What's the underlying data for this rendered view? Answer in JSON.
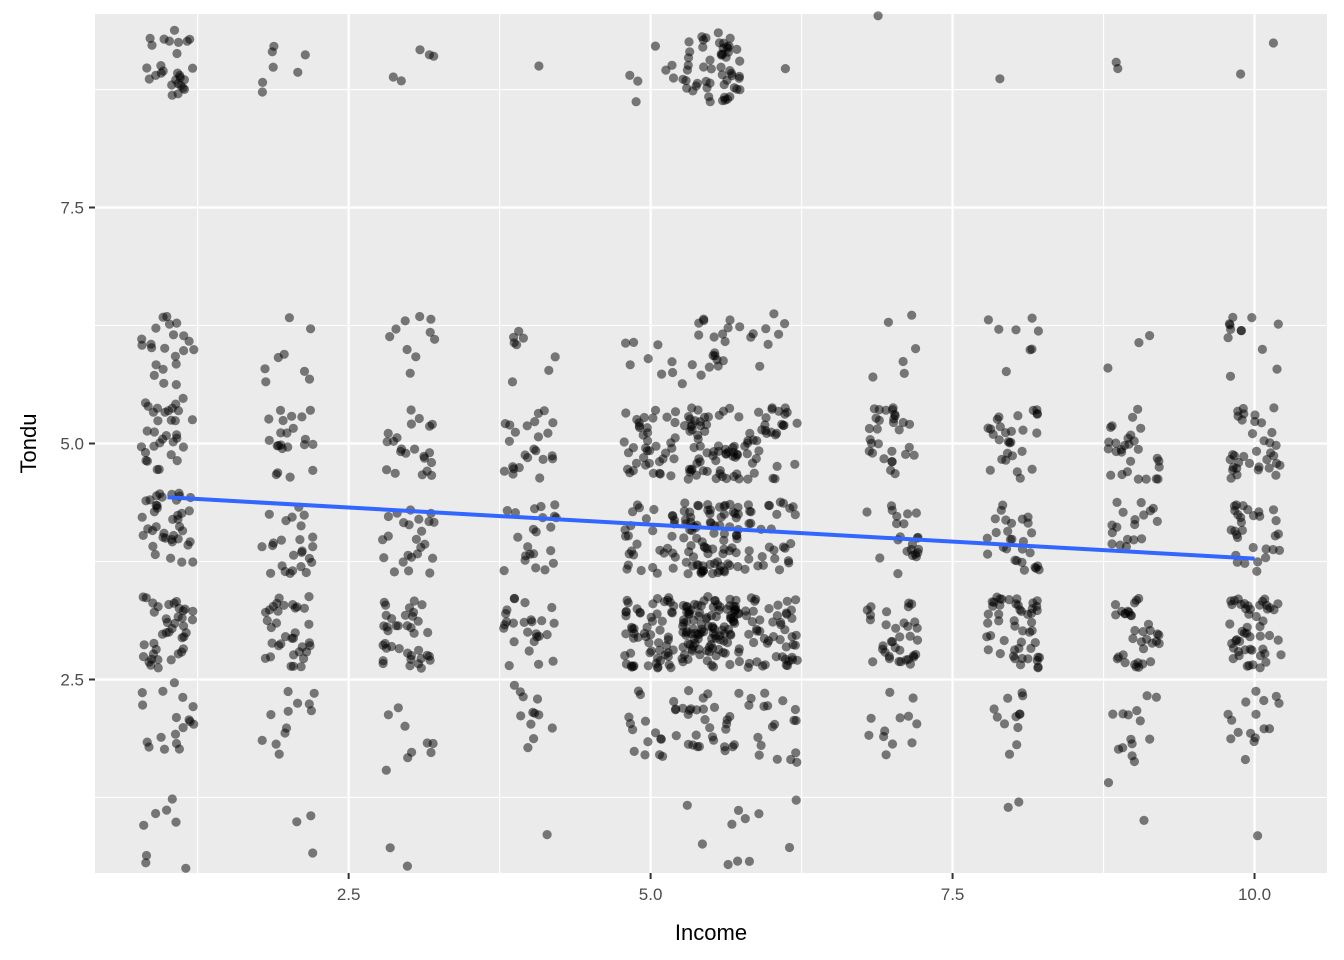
{
  "chart_data": {
    "type": "scatter",
    "title": "",
    "xlabel": "Income",
    "ylabel": "Tondu",
    "xlim": [
      0.4,
      10.6
    ],
    "ylim": [
      0.45,
      9.55
    ],
    "x_ticks": [
      2.5,
      5.0,
      7.5,
      10.0
    ],
    "x_tick_labels": [
      "2.5",
      "5.0",
      "7.5",
      "10.0"
    ],
    "y_ticks": [
      2.5,
      5.0,
      7.5
    ],
    "y_tick_labels": [
      "2.5",
      "5.0",
      "7.5"
    ],
    "x_minor_gridlines": [
      1.25,
      3.75,
      6.25,
      8.75
    ],
    "y_minor_gridlines": [
      1.25,
      3.75,
      6.25,
      8.75
    ],
    "grid": true,
    "jitter": {
      "x": 0.22,
      "y": 0.38
    },
    "points_summary": {
      "description_of_clusters": "x levels 1-10 by y levels 1-9",
      "x_levels": [
        1,
        2,
        3,
        4,
        5,
        5.5,
        6,
        7,
        8,
        9,
        10
      ],
      "y_levels": [
        0.8,
        1.7,
        2.0,
        2.3,
        2.8,
        3.2,
        4.0,
        4.8,
        5.2,
        6.0,
        9.0
      ]
    },
    "clusters": [
      {
        "x": 1,
        "y": 9.0,
        "n": 28
      },
      {
        "x": 1,
        "y": 6.0,
        "n": 22
      },
      {
        "x": 1,
        "y": 5.1,
        "n": 32
      },
      {
        "x": 1,
        "y": 4.1,
        "n": 40
      },
      {
        "x": 1,
        "y": 3.0,
        "n": 40
      },
      {
        "x": 1,
        "y": 2.1,
        "n": 18
      },
      {
        "x": 1,
        "y": 1.2,
        "n": 3
      },
      {
        "x": 1,
        "y": 0.8,
        "n": 5
      },
      {
        "x": 2,
        "y": 9.0,
        "n": 7
      },
      {
        "x": 2,
        "y": 6.0,
        "n": 8
      },
      {
        "x": 2,
        "y": 5.0,
        "n": 22
      },
      {
        "x": 2,
        "y": 4.0,
        "n": 25
      },
      {
        "x": 2,
        "y": 3.0,
        "n": 35
      },
      {
        "x": 2,
        "y": 2.0,
        "n": 12
      },
      {
        "x": 2,
        "y": 1.3,
        "n": 1
      },
      {
        "x": 2,
        "y": 0.85,
        "n": 2
      },
      {
        "x": 3,
        "y": 9.0,
        "n": 5
      },
      {
        "x": 3,
        "y": 6.0,
        "n": 10
      },
      {
        "x": 3,
        "y": 5.0,
        "n": 22
      },
      {
        "x": 3,
        "y": 4.0,
        "n": 24
      },
      {
        "x": 3,
        "y": 3.0,
        "n": 38
      },
      {
        "x": 3,
        "y": 1.9,
        "n": 9
      },
      {
        "x": 3,
        "y": 0.75,
        "n": 2
      },
      {
        "x": 4,
        "y": 8.8,
        "n": 1
      },
      {
        "x": 4,
        "y": 6.0,
        "n": 8
      },
      {
        "x": 4,
        "y": 5.0,
        "n": 24
      },
      {
        "x": 4,
        "y": 4.0,
        "n": 22
      },
      {
        "x": 4,
        "y": 3.0,
        "n": 26
      },
      {
        "x": 4,
        "y": 2.1,
        "n": 12
      },
      {
        "x": 4,
        "y": 0.8,
        "n": 1
      },
      {
        "x": 5,
        "y": 9.0,
        "n": 7
      },
      {
        "x": 5,
        "y": 5.8,
        "n": 8
      },
      {
        "x": 5,
        "y": 5.0,
        "n": 40
      },
      {
        "x": 5,
        "y": 4.0,
        "n": 30
      },
      {
        "x": 5,
        "y": 3.0,
        "n": 60
      },
      {
        "x": 5,
        "y": 2.0,
        "n": 18
      },
      {
        "x": 5.5,
        "y": 9.0,
        "n": 55
      },
      {
        "x": 5.5,
        "y": 6.0,
        "n": 20
      },
      {
        "x": 5.5,
        "y": 5.0,
        "n": 60
      },
      {
        "x": 5.5,
        "y": 4.0,
        "n": 80
      },
      {
        "x": 5.5,
        "y": 3.0,
        "n": 110
      },
      {
        "x": 5.5,
        "y": 2.1,
        "n": 28
      },
      {
        "x": 5.5,
        "y": 0.9,
        "n": 6
      },
      {
        "x": 6,
        "y": 8.8,
        "n": 1
      },
      {
        "x": 6,
        "y": 6.0,
        "n": 8
      },
      {
        "x": 6,
        "y": 5.0,
        "n": 35
      },
      {
        "x": 6,
        "y": 4.0,
        "n": 30
      },
      {
        "x": 6,
        "y": 3.0,
        "n": 50
      },
      {
        "x": 6,
        "y": 2.0,
        "n": 18
      },
      {
        "x": 6,
        "y": 0.85,
        "n": 5
      },
      {
        "x": 7,
        "y": 9.3,
        "n": 1
      },
      {
        "x": 7,
        "y": 6.0,
        "n": 6
      },
      {
        "x": 7,
        "y": 5.0,
        "n": 30
      },
      {
        "x": 7,
        "y": 4.0,
        "n": 22
      },
      {
        "x": 7,
        "y": 3.0,
        "n": 35
      },
      {
        "x": 7,
        "y": 2.0,
        "n": 12
      },
      {
        "x": 8,
        "y": 8.9,
        "n": 1
      },
      {
        "x": 8,
        "y": 6.0,
        "n": 8
      },
      {
        "x": 8,
        "y": 5.0,
        "n": 28
      },
      {
        "x": 8,
        "y": 4.0,
        "n": 28
      },
      {
        "x": 8,
        "y": 3.0,
        "n": 50
      },
      {
        "x": 8,
        "y": 2.0,
        "n": 12
      },
      {
        "x": 8,
        "y": 1.15,
        "n": 2
      },
      {
        "x": 9,
        "y": 9.0,
        "n": 2
      },
      {
        "x": 9,
        "y": 6.0,
        "n": 3
      },
      {
        "x": 9,
        "y": 5.0,
        "n": 28
      },
      {
        "x": 9,
        "y": 4.0,
        "n": 18
      },
      {
        "x": 9,
        "y": 3.0,
        "n": 35
      },
      {
        "x": 9,
        "y": 2.0,
        "n": 14
      },
      {
        "x": 9,
        "y": 1.2,
        "n": 2
      },
      {
        "x": 10,
        "y": 9.1,
        "n": 2
      },
      {
        "x": 10,
        "y": 6.0,
        "n": 12
      },
      {
        "x": 10,
        "y": 5.0,
        "n": 35
      },
      {
        "x": 10,
        "y": 4.0,
        "n": 30
      },
      {
        "x": 10,
        "y": 3.0,
        "n": 50
      },
      {
        "x": 10,
        "y": 2.0,
        "n": 16
      },
      {
        "x": 10,
        "y": 0.8,
        "n": 1
      }
    ],
    "regression_line": {
      "x": [
        1.0,
        10.0
      ],
      "y": [
        4.43,
        3.78
      ],
      "color": "#3366FF"
    },
    "point_color": "#000000",
    "point_alpha": 0.5,
    "panel_background": "#EBEBEB",
    "grid_color": "#FFFFFF"
  }
}
